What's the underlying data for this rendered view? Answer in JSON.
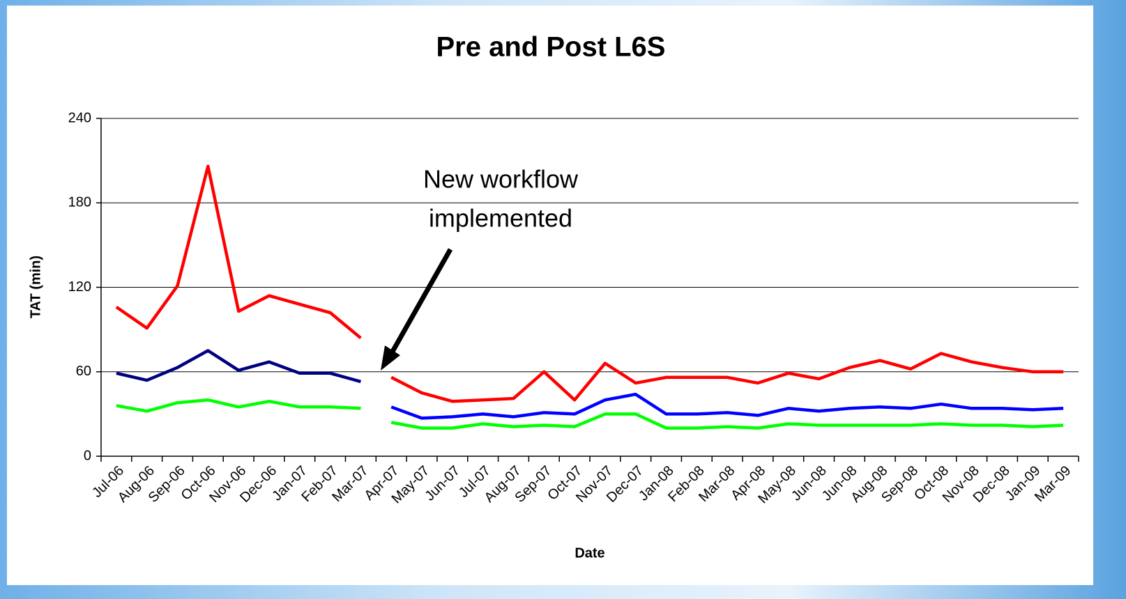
{
  "chart_data": {
    "type": "line",
    "title": "Pre and Post L6S",
    "y_label": "TAT (min)",
    "x_label": "Date",
    "annotation": [
      "New workflow",
      "implemented"
    ],
    "categories": [
      "Jul-06",
      "Aug-06",
      "Sep-06",
      "Oct-06",
      "Nov-06",
      "Dec-06",
      "Jan-07",
      "Feb-07",
      "Mar-07",
      "Apr-07",
      "May-07",
      "Jun-07",
      "Jul-07",
      "Aug-07",
      "Sep-07",
      "Oct-07",
      "Nov-07",
      "Dec-07",
      "Jan-08",
      "Feb-08",
      "Mar-08",
      "Apr-08",
      "May-08",
      "Jun-08",
      "Jun-08",
      "Aug-08",
      "Sep-08",
      "Oct-08",
      "Nov-08",
      "Dec-08",
      "Jan-09",
      "Mar-09"
    ],
    "ylim": [
      0,
      240
    ],
    "yticks": [
      0,
      60,
      120,
      180,
      240
    ],
    "grid": true,
    "series": [
      {
        "color": "#ff0000",
        "values": [
          106,
          91,
          121,
          206,
          103,
          114,
          108,
          102,
          84,
          null,
          null,
          null,
          null,
          null,
          null,
          null,
          null,
          null,
          null,
          null,
          null,
          null,
          null,
          null,
          null,
          null,
          null,
          null,
          null,
          null,
          null,
          null
        ]
      },
      {
        "color": "#000080",
        "values": [
          59,
          54,
          63,
          75,
          61,
          67,
          59,
          59,
          53,
          null,
          null,
          null,
          null,
          null,
          null,
          null,
          null,
          null,
          null,
          null,
          null,
          null,
          null,
          null,
          null,
          null,
          null,
          null,
          null,
          null,
          null,
          null
        ]
      },
      {
        "color": "#00ff00",
        "values": [
          36,
          32,
          38,
          40,
          35,
          39,
          35,
          35,
          34,
          null,
          null,
          null,
          null,
          null,
          null,
          null,
          null,
          null,
          null,
          null,
          null,
          null,
          null,
          null,
          null,
          null,
          null,
          null,
          null,
          null,
          null,
          null
        ]
      },
      {
        "color": "#ff0000",
        "values": [
          null,
          null,
          null,
          null,
          null,
          null,
          null,
          null,
          null,
          56,
          45,
          39,
          40,
          41,
          60,
          40,
          66,
          52,
          56,
          56,
          56,
          52,
          59,
          55,
          63,
          68,
          62,
          73,
          67,
          63,
          60,
          60
        ]
      },
      {
        "color": "#0000ff",
        "values": [
          null,
          null,
          null,
          null,
          null,
          null,
          null,
          null,
          null,
          35,
          27,
          28,
          30,
          28,
          31,
          30,
          40,
          44,
          30,
          30,
          31,
          29,
          34,
          32,
          34,
          35,
          34,
          37,
          34,
          34,
          33,
          34
        ]
      },
      {
        "color": "#00ff00",
        "values": [
          null,
          null,
          null,
          null,
          null,
          null,
          null,
          null,
          null,
          24,
          20,
          20,
          23,
          21,
          22,
          21,
          30,
          30,
          20,
          20,
          21,
          20,
          23,
          22,
          22,
          22,
          22,
          23,
          22,
          22,
          21,
          22
        ]
      }
    ]
  }
}
